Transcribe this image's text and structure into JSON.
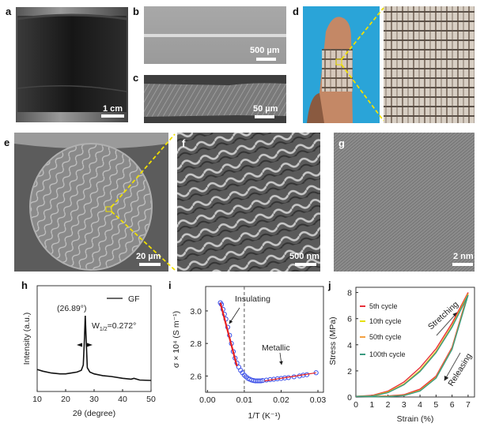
{
  "panels": {
    "a": {
      "label": "a",
      "scale_bar": "1 cm"
    },
    "b": {
      "label": "b",
      "scale_bar": "500 µm"
    },
    "c": {
      "label": "c",
      "scale_bar": "50 µm"
    },
    "d": {
      "label": "d"
    },
    "e": {
      "label": "e",
      "scale_bar": "20 µm"
    },
    "f": {
      "label": "f",
      "scale_bar": "500 nm"
    },
    "g": {
      "label": "g",
      "scale_bar": "2 nm"
    },
    "h": {
      "label": "h"
    },
    "i": {
      "label": "i"
    },
    "j": {
      "label": "j"
    }
  },
  "colors": {
    "zoom_guide": "#f0e000",
    "photo_blue": "#2aa4d8"
  },
  "chart_data": [
    {
      "id": "h",
      "type": "line",
      "xlabel": "2θ (degree)",
      "ylabel": "Intensity (a.u.)",
      "xlim": [
        10,
        50
      ],
      "ylim": [
        0,
        1.2
      ],
      "xticks": [
        10,
        20,
        30,
        40,
        50
      ],
      "yticks_shown": false,
      "legend": {
        "placement": "top-right",
        "entries": [
          "GF"
        ]
      },
      "series": [
        {
          "name": "GF",
          "color": "#111111",
          "x": [
            10,
            12,
            15,
            18,
            20,
            22,
            24,
            25.5,
            26.2,
            26.6,
            26.89,
            27.2,
            27.6,
            28.5,
            30,
            33,
            36,
            40,
            43,
            44,
            46,
            50
          ],
          "y": [
            0.25,
            0.23,
            0.21,
            0.2,
            0.2,
            0.21,
            0.22,
            0.24,
            0.3,
            0.6,
            0.86,
            0.6,
            0.27,
            0.22,
            0.2,
            0.18,
            0.17,
            0.15,
            0.14,
            0.15,
            0.13,
            0.125
          ]
        }
      ],
      "annotations": {
        "peak_position": "(26.89°)",
        "fwhm_symbol": "W",
        "fwhm_subscript": "1/2",
        "fwhm_value": "=0.272°"
      }
    },
    {
      "id": "i",
      "type": "scatter",
      "xlabel": "1/T (K⁻¹)",
      "ylabel": "σ × 10⁴ (S m⁻¹)",
      "xlim": [
        -0.0005,
        0.0315
      ],
      "ylim": [
        2.5,
        3.15
      ],
      "xticks": [
        "0.00",
        "0.01",
        "0.02",
        "0.03"
      ],
      "yticks": [
        "2.6",
        "2.8",
        "3.0"
      ],
      "marker_color": "#3a4ee8",
      "fit_color": "#e82020",
      "points": {
        "x": [
          0.0035,
          0.0038,
          0.0042,
          0.0046,
          0.005,
          0.0055,
          0.006,
          0.0065,
          0.007,
          0.0075,
          0.008,
          0.0085,
          0.009,
          0.0095,
          0.01,
          0.0105,
          0.011,
          0.0115,
          0.012,
          0.0125,
          0.013,
          0.0135,
          0.014,
          0.0145,
          0.015,
          0.016,
          0.017,
          0.018,
          0.019,
          0.02,
          0.021,
          0.022,
          0.0235,
          0.025,
          0.026,
          0.027,
          0.0295
        ],
        "y": [
          3.05,
          3.04,
          3.01,
          2.98,
          2.95,
          2.9,
          2.85,
          2.8,
          2.75,
          2.71,
          2.68,
          2.655,
          2.635,
          2.62,
          2.605,
          2.595,
          2.585,
          2.58,
          2.575,
          2.572,
          2.57,
          2.57,
          2.57,
          2.57,
          2.572,
          2.575,
          2.578,
          2.58,
          2.583,
          2.585,
          2.588,
          2.59,
          2.595,
          2.6,
          2.605,
          2.608,
          2.62
        ]
      },
      "fits": [
        {
          "name": "Insulating",
          "x": [
            0.0035,
            0.008
          ],
          "y": [
            3.05,
            2.66
          ]
        },
        {
          "name": "Metallic",
          "x": [
            0.0155,
            0.0295
          ],
          "y": [
            2.57,
            2.62
          ]
        }
      ],
      "divider_x": 0.01,
      "annotations": {
        "insulating": "Insulating",
        "metallic": "Metallic"
      }
    },
    {
      "id": "j",
      "type": "line",
      "xlabel": "Strain (%)",
      "ylabel": "Stress (MPa)",
      "xlim": [
        0,
        7.4
      ],
      "ylim": [
        0,
        8.4
      ],
      "xticks": [
        0,
        1,
        2,
        3,
        4,
        5,
        6,
        7
      ],
      "yticks": [
        0,
        2,
        4,
        6,
        8
      ],
      "legend": {
        "placement": "top-left"
      },
      "series": [
        {
          "name": "5th cycle",
          "color": "#e8303a",
          "strain": [
            0,
            1,
            2,
            3,
            4,
            5,
            6,
            7
          ],
          "stretching": [
            0.05,
            0.12,
            0.45,
            1.15,
            2.25,
            3.7,
            5.65,
            8.0
          ],
          "releasing": [
            0.05,
            0.05,
            0.08,
            0.18,
            0.6,
            1.6,
            3.8,
            8.0
          ]
        },
        {
          "name": "10th cycle",
          "color": "#e6e000",
          "strain": [
            0,
            1,
            2,
            3,
            4,
            5,
            6,
            7
          ],
          "stretching": [
            0.05,
            0.08,
            0.38,
            1.0,
            2.05,
            3.5,
            5.45,
            7.9
          ],
          "releasing": [
            0.05,
            0.04,
            0.05,
            0.13,
            0.5,
            1.5,
            3.7,
            7.9
          ]
        },
        {
          "name": "50th cycle",
          "color": "#f4a040",
          "strain": [
            0,
            1,
            2,
            3,
            4,
            5,
            6,
            7
          ],
          "stretching": [
            0.05,
            0.07,
            0.35,
            0.97,
            2.0,
            3.45,
            5.4,
            7.85
          ],
          "releasing": [
            0.05,
            0.03,
            0.04,
            0.12,
            0.48,
            1.48,
            3.68,
            7.85
          ]
        },
        {
          "name": "100th cycle",
          "color": "#3a9a80",
          "strain": [
            0,
            1,
            2,
            3,
            4,
            5,
            6,
            7
          ],
          "stretching": [
            0.05,
            0.06,
            0.33,
            0.94,
            1.95,
            3.4,
            5.35,
            7.8
          ],
          "releasing": [
            0.05,
            0.02,
            0.03,
            0.11,
            0.46,
            1.45,
            3.65,
            7.8
          ]
        }
      ],
      "annotations": {
        "stretching": "Stretching",
        "releasing": "Releasing"
      }
    }
  ]
}
